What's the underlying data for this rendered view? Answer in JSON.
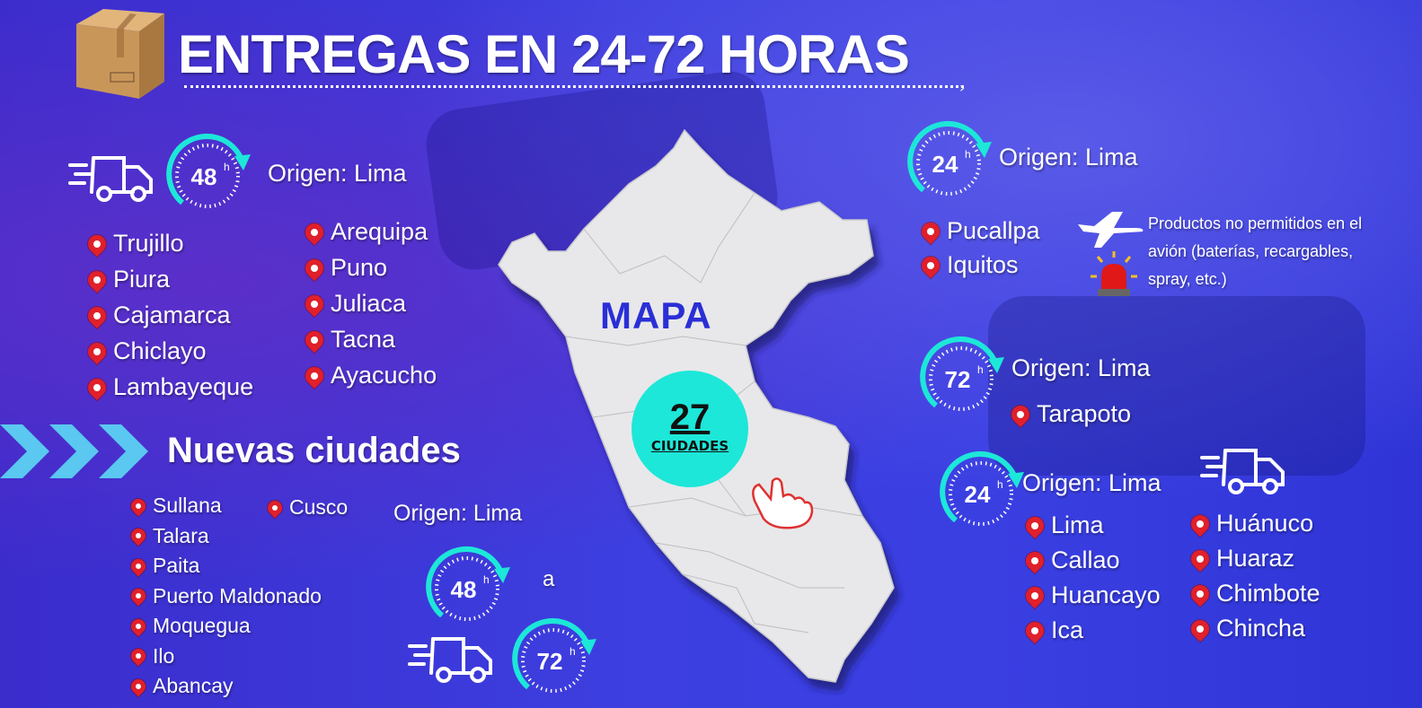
{
  "header": {
    "title": "ENTREGAS EN 24-72 HORAS",
    "box_icon": "cardboard-box-icon"
  },
  "colors": {
    "background": "#3a3fe2",
    "accent": "#1de7d8",
    "pin": "#e0202a",
    "map": "#e8e8ea",
    "mapa_text": "#2a2fd6"
  },
  "group_48h": {
    "clock": "48",
    "unit": "h",
    "origin": "Origen: Lima",
    "cities_a": [
      "Trujillo",
      "Piura",
      "Cajamarca",
      "Chiclayo",
      "Lambayeque"
    ],
    "cities_b": [
      "Arequipa",
      "Puno",
      "Juliaca",
      "Tacna",
      "Ayacucho"
    ]
  },
  "new_cities": {
    "title": "Nuevas ciudades",
    "cities": [
      "Sullana",
      "Talara",
      "Paita",
      "Puerto Maldonado",
      "Moquegua",
      "Ilo",
      "Abancay"
    ],
    "cities_b": [
      "Cusco"
    ],
    "origin": "Origen: Lima",
    "clock_from": "48",
    "clock_to": "72",
    "unit": "h",
    "connector": "a"
  },
  "map": {
    "label": "MAPA",
    "count": "27",
    "count_label": "CIUDADES"
  },
  "group_24h_air": {
    "clock": "24",
    "unit": "h",
    "origin": "Origen: Lima",
    "cities": [
      "Pucallpa",
      "Iquitos"
    ],
    "note": "Productos no permitidos en el avión (baterías, recargables, spray, etc.)"
  },
  "group_72h": {
    "clock": "72",
    "unit": "h",
    "origin": "Origen: Lima",
    "cities": [
      "Tarapoto"
    ]
  },
  "group_24h_land": {
    "clock": "24",
    "unit": "h",
    "origin": "Origen: Lima",
    "cities_a": [
      "Lima",
      "Callao",
      "Huancayo",
      "Ica"
    ],
    "cities_b": [
      "Huánuco",
      "Huaraz",
      "Chimbote",
      "Chincha"
    ]
  }
}
